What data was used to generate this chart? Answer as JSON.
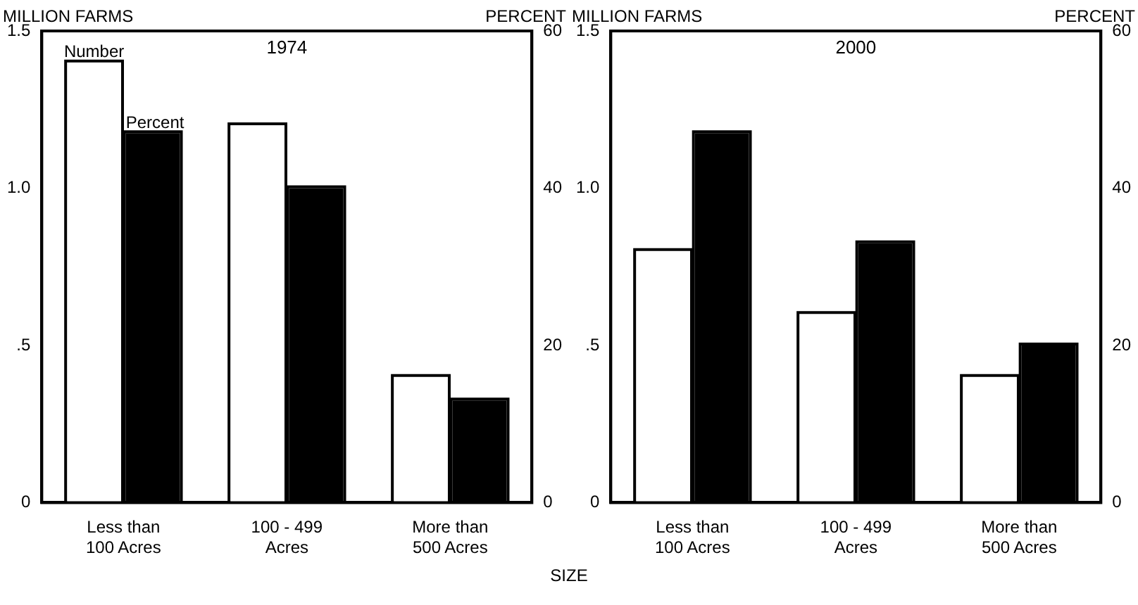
{
  "chart_data": [
    {
      "type": "bar",
      "title": "1974",
      "ylabel": "MILLION FARMS",
      "y2label": "PERCENT",
      "categories": [
        "Less than 100 Acres",
        "100 - 499 Acres",
        "More than 500 Acres"
      ],
      "series": [
        {
          "name": "Number",
          "color": "#ffffff",
          "values": [
            1.4,
            1.2,
            0.4
          ]
        },
        {
          "name": "Percent",
          "color": "#000000",
          "values": [
            47,
            40,
            13
          ],
          "axis": "y2"
        }
      ],
      "ylim": [
        0,
        1.5
      ],
      "yticks": [
        0,
        {
          "value": 0.5,
          "label": ".5"
        },
        {
          "value": 1,
          "label": "1.0"
        },
        {
          "value": 1.5,
          "label": "1.5"
        }
      ],
      "y2lim": [
        0,
        60
      ],
      "y2ticks": [
        0,
        20,
        40,
        60
      ],
      "grid": false,
      "legend": false
    },
    {
      "type": "bar",
      "title": "2000",
      "ylabel": "MILLION FARMS",
      "y2label": "PERCENT",
      "xlabel": "SIZE",
      "categories": [
        "Less than 100 Acres",
        "100 - 499 Acres",
        "More than 500 Acres"
      ],
      "series": [
        {
          "color": "#ffffff",
          "values": [
            0.8,
            0.6,
            0.4
          ]
        },
        {
          "color": "#000000",
          "values": [
            47,
            33,
            20
          ],
          "axis": "y2"
        }
      ],
      "ylim": [
        0,
        1.5
      ],
      "yticks": [
        0,
        {
          "value": 0.5,
          "label": ".5"
        },
        {
          "value": 1,
          "label": "1.0"
        },
        {
          "value": 1.5,
          "label": "1.5"
        }
      ],
      "y2lim": [
        0,
        60
      ],
      "y2ticks": [
        0,
        20,
        40,
        60
      ],
      "grid": false,
      "legend": false
    }
  ]
}
